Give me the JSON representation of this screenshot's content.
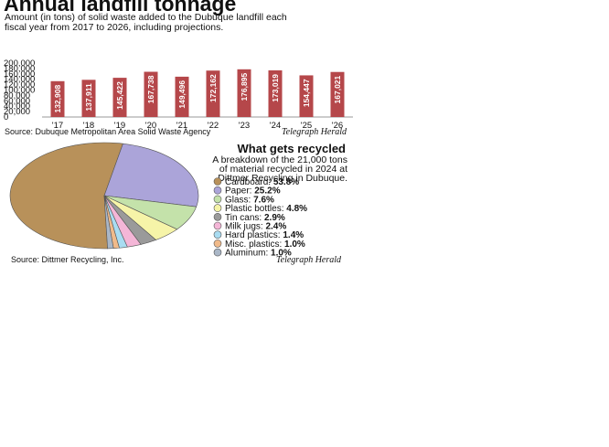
{
  "chart_data": [
    {
      "type": "bar",
      "title": "Annual landfill tonnage",
      "subtitle": [
        "Amount (in tons) of solid waste added to the Dubuque landfill each",
        "fiscal year from 2017 to 2026, including projections."
      ],
      "categories": [
        "'17",
        "'18",
        "'19",
        "'20",
        "'21",
        "'22",
        "'23",
        "'24",
        "'25",
        "'26"
      ],
      "values": [
        132908,
        137911,
        145422,
        167738,
        149496,
        172162,
        176895,
        173019,
        154447,
        167021
      ],
      "value_labels": [
        "132,908",
        "137,911",
        "145,422",
        "167,738",
        "149,496",
        "172,162",
        "176,895",
        "173,019",
        "154,447",
        "167,021"
      ],
      "color": "#b5474a",
      "ylim": [
        0,
        200000
      ],
      "yticks": [
        0,
        {
          "value": 20000,
          "label": "20,000"
        },
        {
          "value": 40000,
          "label": "40,000"
        },
        {
          "value": 60000,
          "label": "60,000"
        },
        {
          "value": 80000,
          "label": "80,000"
        },
        {
          "value": 100000,
          "label": "100,000"
        },
        {
          "value": 120000,
          "label": "120,000"
        },
        {
          "value": 140000,
          "label": "140,000"
        },
        {
          "value": 160000,
          "label": "160,000"
        },
        {
          "value": 180000,
          "label": "180,000"
        },
        {
          "value": 200000,
          "label": "200,000"
        }
      ],
      "grid": false,
      "source": "Source: Dubuque Metropolitan Area Solid Waste Agency",
      "credit": "Telegraph Herald"
    },
    {
      "type": "pie",
      "title": "What gets recycled",
      "subtitle": [
        "A breakdown of the 21,000 tons",
        "of material recycled in 2024 at",
        "Dittmer Recycling in Dubuque."
      ],
      "categories": [
        "Cardboard:",
        "Paper:",
        "Glass:",
        "Plastic bottles:",
        "Tin cans:",
        "Milk jugs:",
        "Hard plastics:",
        "Misc. plastics:",
        "Aluminum:"
      ],
      "values": [
        53.8,
        25.2,
        7.6,
        4.8,
        2.9,
        2.4,
        1.4,
        1.0,
        1.0
      ],
      "value_labels": [
        "53.8%",
        "25.2%",
        "7.6%",
        "4.8%",
        "2.9%",
        "2.4%",
        "1.4%",
        "1.0%",
        "1.0%"
      ],
      "colors": [
        "#b8915a",
        "#aba4d9",
        "#c4e2aa",
        "#f6f4a8",
        "#9a9a9a",
        "#f4b6d7",
        "#a9dcf1",
        "#f0ba8a",
        "#aab7c7"
      ],
      "source": "Source: Dittmer Recycling, Inc.",
      "credit": "Telegraph Herald"
    }
  ]
}
